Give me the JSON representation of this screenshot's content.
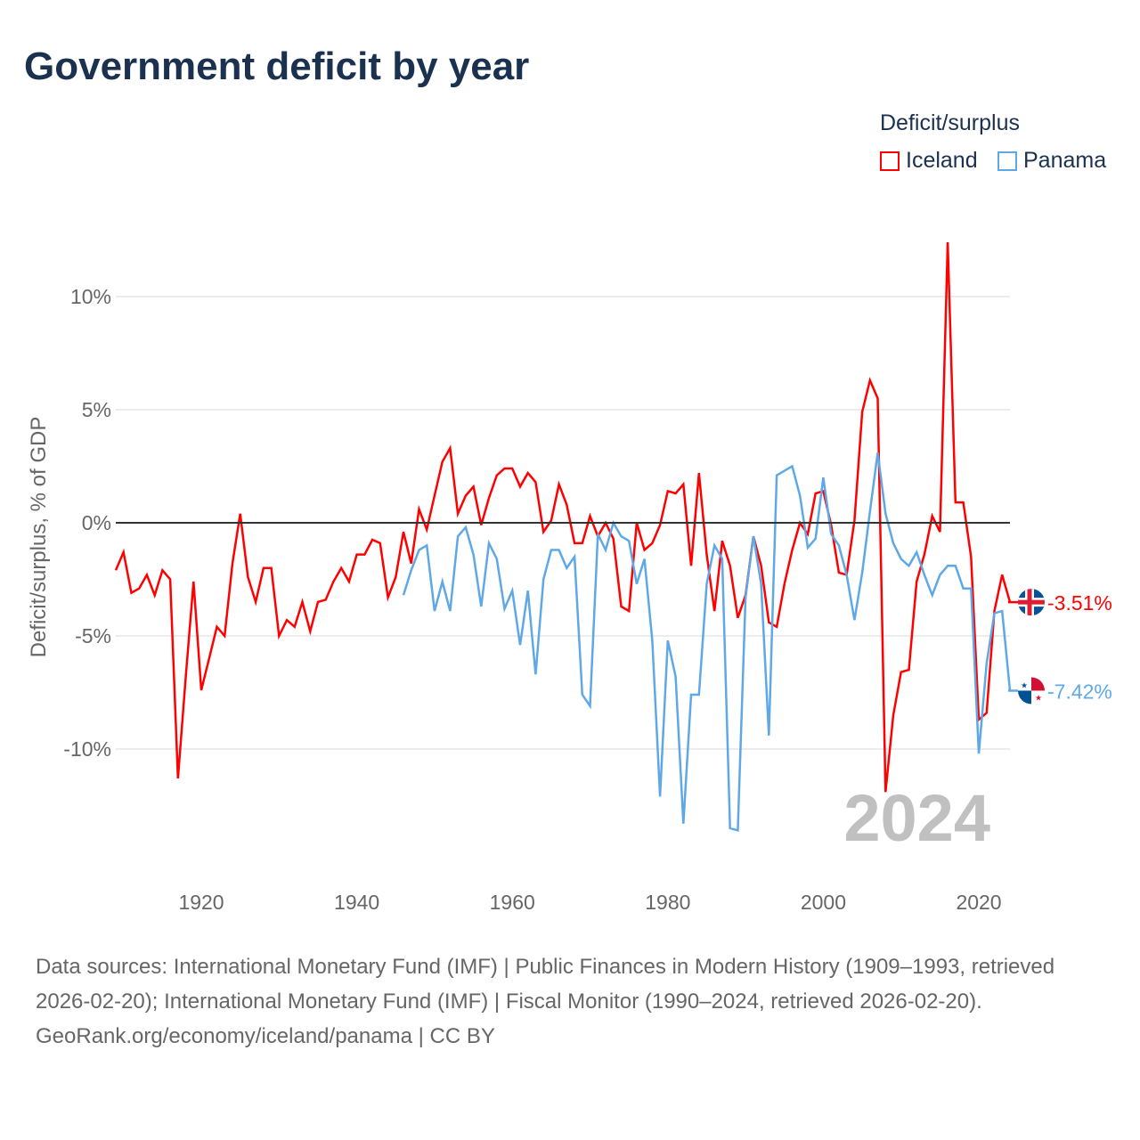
{
  "title": "Government deficit by year",
  "legend": {
    "title": "Deficit/surplus",
    "items": [
      {
        "label": "Iceland",
        "color": "#ff0000"
      },
      {
        "label": "Panama",
        "color": "#5fa8e8"
      }
    ]
  },
  "year_watermark": "2024",
  "footer": {
    "sources": "Data sources: International Monetary Fund (IMF) | Public Finances in Modern History (1909–1993, retrieved 2026-02-20); International Monetary Fund (IMF) | Fiscal Monitor (1990–2024, retrieved 2026-02-20).",
    "credit": "GeoRank.org/economy/iceland/panama | CC BY"
  },
  "chart_data": {
    "type": "line",
    "title": "Government deficit by year",
    "xlabel": "",
    "ylabel": "Deficit/surplus, % of GDP",
    "xlim": [
      1909,
      2024
    ],
    "ylim": [
      -14,
      14
    ],
    "xticks": [
      {
        "value": 1920,
        "label": "1920"
      },
      {
        "value": 1940,
        "label": "1940"
      },
      {
        "value": 1960,
        "label": "1960"
      },
      {
        "value": 1980,
        "label": "1980"
      },
      {
        "value": 2000,
        "label": "2000"
      },
      {
        "value": 2020,
        "label": "2020"
      }
    ],
    "yticks": [
      {
        "value": 10,
        "label": "10%"
      },
      {
        "value": 5,
        "label": "5%"
      },
      {
        "value": 0,
        "label": "0%"
      },
      {
        "value": -5,
        "label": "-5%"
      },
      {
        "value": -10,
        "label": "-10%"
      }
    ],
    "series": [
      {
        "name": "Iceland",
        "color": "#ff0000",
        "end_label": "-3.51%",
        "start_year": 1909,
        "values": [
          -2.1,
          -1.3,
          -3.1,
          -2.9,
          -2.3,
          -3.2,
          -2.1,
          -2.5,
          -11.3,
          -6.8,
          -2.6,
          -7.4,
          -6.0,
          -4.6,
          -5.0,
          -1.8,
          0.4,
          -2.4,
          -3.5,
          -2.0,
          -2.0,
          -5.0,
          -4.3,
          -4.6,
          -3.5,
          -4.8,
          -3.5,
          -3.4,
          -2.6,
          -2.0,
          -2.6,
          -1.4,
          -1.4,
          -0.75,
          -0.9,
          -3.3,
          -2.4,
          -0.4,
          -1.8,
          0.6,
          -0.3,
          1.2,
          2.7,
          3.3,
          0.4,
          1.2,
          1.6,
          -0.1,
          1.1,
          2.1,
          2.4,
          2.4,
          1.6,
          2.2,
          1.8,
          -0.4,
          0.1,
          1.7,
          0.8,
          -0.9,
          -0.9,
          0.3,
          -0.6,
          0.0,
          -0.7,
          -3.7,
          -3.9,
          0.0,
          -1.2,
          -0.9,
          -0.1,
          1.4,
          1.3,
          1.7,
          -1.9,
          2.2,
          -1.4,
          -3.9,
          -0.8,
          -1.9,
          -4.2,
          -3.2,
          -0.6,
          -1.9,
          -4.4,
          -4.6,
          -2.7,
          -1.2,
          0.0,
          -0.5,
          1.3,
          1.4,
          -0.1,
          -2.2,
          -2.3,
          0.1,
          4.9,
          6.3,
          5.5,
          -11.9,
          -8.5,
          -6.6,
          -6.5,
          -2.6,
          -1.4,
          0.3,
          -0.4,
          12.4,
          0.9,
          0.9,
          -1.5,
          -8.7,
          -8.4,
          -3.9,
          -2.3,
          -3.51
        ]
      },
      {
        "name": "Panama",
        "color": "#5fa8e8",
        "end_label": "-7.42%",
        "start_year": 1946,
        "values": [
          -3.2,
          -2.1,
          -1.2,
          -1.0,
          -3.9,
          -2.6,
          -3.9,
          -0.6,
          -0.2,
          -1.4,
          -3.7,
          -0.9,
          -1.6,
          -3.8,
          -3.0,
          -5.4,
          -3.0,
          -6.7,
          -2.5,
          -1.2,
          -1.2,
          -2.0,
          -1.5,
          -7.6,
          -8.1,
          -0.5,
          -1.2,
          0.0,
          -0.6,
          -0.8,
          -2.7,
          -1.6,
          -5.2,
          -12.1,
          -5.2,
          -6.8,
          -13.3,
          -7.6,
          -7.6,
          -2.7,
          -1.0,
          -1.6,
          -13.5,
          -13.6,
          -3.3,
          -0.6,
          -2.7,
          -9.4,
          2.1,
          2.3,
          2.5,
          1.2,
          -1.1,
          -0.7,
          2.0,
          -0.5,
          -1.0,
          -2.3,
          -4.3,
          -2.2,
          0.5,
          3.1,
          0.4,
          -0.9,
          -1.6,
          -1.9,
          -1.3,
          -2.3,
          -3.2,
          -2.3,
          -1.9,
          -1.9,
          -2.9,
          -2.9,
          -10.2,
          -6.2,
          -4.0,
          -3.9,
          -7.42
        ]
      }
    ]
  }
}
